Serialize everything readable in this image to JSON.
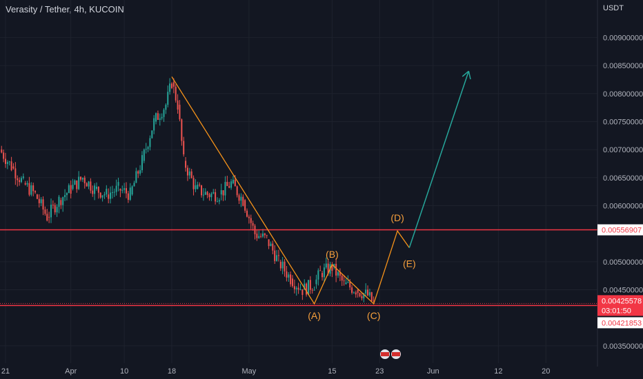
{
  "header": {
    "title": "Verasity / Tether, 4h, KUCOIN",
    "unit": "USDT"
  },
  "colors": {
    "background": "#131722",
    "grid": "#1e222d",
    "up": "#26a69a",
    "down": "#ef5350",
    "wave": "#f7931a",
    "arrow": "#26a69a",
    "level": "#f23645",
    "axis_text": "#b2b5be"
  },
  "chart_data": {
    "type": "line",
    "symbol": "Verasity / Tether",
    "interval": "4h",
    "exchange": "KUCOIN",
    "y_ticks": [
      "0.00900000",
      "0.00850000",
      "0.00800000",
      "0.00750000",
      "0.00700000",
      "0.00650000",
      "0.00600000",
      "0.00500000",
      "0.00450000",
      "0.00350000"
    ],
    "y_values": [
      0.009,
      0.0085,
      0.008,
      0.0075,
      0.007,
      0.0065,
      0.006,
      0.005,
      0.0045,
      0.0035
    ],
    "ylim": [
      0.0034,
      0.0093
    ],
    "x_ticks": [
      "21",
      "Apr",
      "10",
      "18",
      "May",
      "15",
      "23",
      "Jun",
      "12",
      "20"
    ],
    "horizontal_levels": [
      {
        "price": 0.00556907,
        "label": "0.00556907"
      },
      {
        "price": 0.00421853,
        "label": "0.00421853"
      }
    ],
    "last_price": {
      "price": 0.00425578,
      "label": "0.00425578",
      "countdown": "03:01:50"
    },
    "wave_labels": [
      "(A)",
      "(B)",
      "(C)",
      "(D)",
      "(E)"
    ],
    "wave_path": [
      {
        "x": "Apr 18",
        "y": 0.0083
      },
      {
        "x": "May 12",
        "y": 0.00425
      },
      {
        "x": "May 15",
        "y": 0.00495
      },
      {
        "x": "May 22",
        "y": 0.00425
      },
      {
        "x": "May 26",
        "y": 0.00555
      },
      {
        "x": "May 28",
        "y": 0.00525
      }
    ],
    "projection_arrow": [
      {
        "x": "May 28",
        "y": 0.00525
      },
      {
        "x": "Jun 7",
        "y": 0.0084
      }
    ],
    "candles_note": "approximate price path",
    "price_path": [
      {
        "x": "Mar 20",
        "y": 0.007
      },
      {
        "x": "Mar 22",
        "y": 0.0067
      },
      {
        "x": "Mar 24",
        "y": 0.0064
      },
      {
        "x": "Mar 26",
        "y": 0.0062
      },
      {
        "x": "Mar 28",
        "y": 0.0058
      },
      {
        "x": "Mar 30",
        "y": 0.0061
      },
      {
        "x": "Apr 1",
        "y": 0.0063
      },
      {
        "x": "Apr 3",
        "y": 0.0065
      },
      {
        "x": "Apr 5",
        "y": 0.0063
      },
      {
        "x": "Apr 7",
        "y": 0.0062
      },
      {
        "x": "Apr 9",
        "y": 0.0063
      },
      {
        "x": "Apr 11",
        "y": 0.0062
      },
      {
        "x": "Apr 13",
        "y": 0.0068
      },
      {
        "x": "Apr 15",
        "y": 0.0075
      },
      {
        "x": "Apr 17",
        "y": 0.0078
      },
      {
        "x": "Apr 18",
        "y": 0.0082
      },
      {
        "x": "Apr 19",
        "y": 0.0078
      },
      {
        "x": "Apr 20",
        "y": 0.0068
      },
      {
        "x": "Apr 22",
        "y": 0.0063
      },
      {
        "x": "Apr 24",
        "y": 0.0062
      },
      {
        "x": "Apr 26",
        "y": 0.0062
      },
      {
        "x": "Apr 28",
        "y": 0.0064
      },
      {
        "x": "Apr 30",
        "y": 0.0061
      },
      {
        "x": "May 2",
        "y": 0.0055
      },
      {
        "x": "May 4",
        "y": 0.0054
      },
      {
        "x": "May 6",
        "y": 0.005
      },
      {
        "x": "May 8",
        "y": 0.0047
      },
      {
        "x": "May 10",
        "y": 0.0045
      },
      {
        "x": "May 12",
        "y": 0.0046
      },
      {
        "x": "May 13",
        "y": 0.0048
      },
      {
        "x": "May 15",
        "y": 0.0049
      },
      {
        "x": "May 17",
        "y": 0.0046
      },
      {
        "x": "May 19",
        "y": 0.0045
      },
      {
        "x": "May 21",
        "y": 0.0044
      },
      {
        "x": "May 22",
        "y": 0.00426
      }
    ]
  }
}
